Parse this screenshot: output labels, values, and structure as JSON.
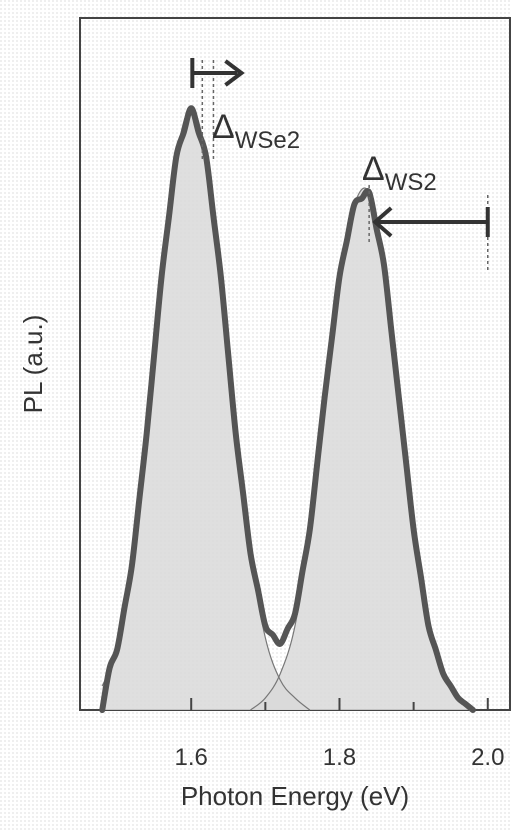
{
  "chart_data": {
    "type": "area",
    "xlabel": "Photon Energy (eV)",
    "ylabel": "PL (a.u.)",
    "xlim": [
      1.45,
      2.03
    ],
    "ylim": [
      0,
      1.15
    ],
    "x_ticks": [
      1.6,
      1.8,
      2.0
    ],
    "x_tick_labels": [
      "1.6",
      "1.8",
      "2.0"
    ],
    "x_minor_ticks": [
      1.7,
      1.9
    ],
    "y_ticks_shown": false,
    "grid": false,
    "legend": "none",
    "series": [
      {
        "name": "WSe2",
        "x": [
          1.48,
          1.5,
          1.52,
          1.54,
          1.56,
          1.58,
          1.6,
          1.62,
          1.64,
          1.66,
          1.68,
          1.7,
          1.72,
          1.74,
          1.76
        ],
        "y": [
          0.04,
          0.1,
          0.24,
          0.46,
          0.72,
          0.92,
          1.0,
          0.92,
          0.72,
          0.46,
          0.26,
          0.12,
          0.05,
          0.02,
          0.0
        ]
      },
      {
        "name": "WS2",
        "x": [
          1.68,
          1.7,
          1.72,
          1.74,
          1.76,
          1.78,
          1.8,
          1.82,
          1.84,
          1.86,
          1.88,
          1.9,
          1.92,
          1.94,
          1.96,
          1.98
        ],
        "y": [
          0.0,
          0.02,
          0.06,
          0.14,
          0.3,
          0.52,
          0.72,
          0.84,
          0.86,
          0.74,
          0.52,
          0.3,
          0.14,
          0.06,
          0.02,
          0.0
        ]
      }
    ],
    "annotations": [
      {
        "label": "Δ",
        "sub": "WSe2",
        "arrow_from": 1.615,
        "arrow_to": 1.63,
        "direction": "right"
      },
      {
        "label": "Δ",
        "sub": "WS2",
        "arrow_from": 2.0,
        "arrow_to": 1.84,
        "direction": "left"
      }
    ],
    "colors": {
      "fill": "#d9d9d9",
      "curve": "#555555",
      "axis": "#444444"
    }
  }
}
